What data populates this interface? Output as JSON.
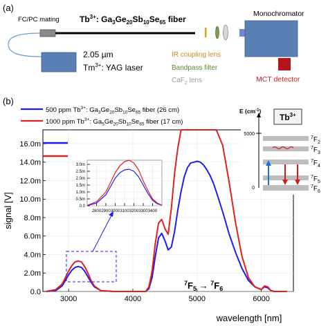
{
  "panel_a": {
    "label": "(a)",
    "mating": "FC/PC mating",
    "fiber_prefix": "Tb",
    "fiber_sup": "3+",
    "fiber_formula": ": Ga",
    "fiber_sub1": "3",
    "fiber_ge": "Ge",
    "fiber_sub2": "20",
    "fiber_sb": "Sb",
    "fiber_sub3": "10",
    "fiber_se": "Se",
    "fiber_sub4": "65",
    "fiber_suffix": " fiber",
    "monochromator": "Monochromator",
    "laser_wavelength": "2.05 µm",
    "laser_name_prefix": "Tm",
    "laser_name_sup": "3+",
    "laser_name_suffix": ": YAG laser",
    "ir_lens": "IR coupling lens",
    "bandpass": "Bandpass filter",
    "caf2_prefix": "CaF",
    "caf2_sub": "2",
    "caf2_suffix": " lens",
    "detector": "MCT detector",
    "colors": {
      "ir_lens": "#c8891f",
      "bandpass": "#5c8a2e",
      "caf2": "#999999",
      "detector": "#c81e1e",
      "fiber_line": "#000000"
    }
  },
  "panel_b": {
    "label": "(b)",
    "legend": [
      {
        "text_prefix": "500 ppm Tb",
        "text_sup": "3+",
        "text_mid": ": Ga",
        "s1": "3",
        "ge": "Ge",
        "s2": "20",
        "sb": "Sb",
        "s3": "10",
        "se": "Se",
        "s4": "65",
        "text_suffix": " fiber (26 cm)",
        "color": "#1a1aff"
      },
      {
        "text_prefix": "1000 ppm Tb",
        "text_sup": "3+",
        "text_mid": ": Ga",
        "s1": "5",
        "ge": "Ge",
        "s2": "20",
        "sb": "Sb",
        "s3": "10",
        "se": "Se",
        "s4": "65",
        "text_suffix": " fiber (17 cm)",
        "color": "#e01f1f"
      }
    ],
    "transition_label_1": "7",
    "transition_label_2": "F",
    "transition_label_3": "5",
    "transition_arrow": " → ",
    "transition_label_4": "7",
    "transition_label_5": "F",
    "transition_label_6": "6",
    "level_diagram": {
      "ion": "Tb",
      "ion_sup": "3+",
      "axis_title": "E (cm",
      "axis_title_sup": "-1",
      "axis_title_end": ")",
      "tick_5000": "5000",
      "tick_0": "0",
      "levels": [
        {
          "sup": "7",
          "name": "F",
          "sub": "2"
        },
        {
          "sup": "7",
          "name": "F",
          "sub": "3"
        },
        {
          "sup": "7",
          "name": "F",
          "sub": "4"
        },
        {
          "sup": "7",
          "name": "F",
          "sub": "5"
        },
        {
          "sup": "7",
          "name": "F",
          "sub": "6"
        }
      ]
    }
  },
  "chart_data": [
    {
      "type": "line",
      "xlabel": "wavelength [nm]",
      "ylabel": "signal [V]",
      "xlim": [
        2600,
        6500
      ],
      "ylim": [
        0,
        0.0175
      ],
      "x_ticks": [
        "3000",
        "4000",
        "5000",
        "6000"
      ],
      "y_ticks": [
        "0.0",
        "2.0m",
        "4.0m",
        "6.0m",
        "8.0m",
        "10.0m",
        "12.0m",
        "14.0m",
        "16.0m"
      ],
      "series": [
        {
          "name": "500 ppm",
          "color": "#1a1aff",
          "x": [
            2650,
            2800,
            2900,
            2950,
            3000,
            3050,
            3100,
            3150,
            3200,
            3250,
            3300,
            3350,
            3400,
            3500,
            3700,
            4000,
            4200,
            4250,
            4300,
            4350,
            4400,
            4450,
            4500,
            4550,
            4600,
            4650,
            4700,
            4750,
            4800,
            4850,
            4900,
            4950,
            5000,
            5050,
            5100,
            5150,
            5200,
            5250,
            5300,
            5400,
            5500,
            5600,
            5700,
            5800,
            5900,
            6000,
            6050,
            6100,
            6150,
            6200,
            6400
          ],
          "y": [
            0,
            0.0001,
            0.0006,
            0.0012,
            0.0018,
            0.0023,
            0.0026,
            0.0027,
            0.0026,
            0.0022,
            0.0016,
            0.001,
            0.0005,
            0.0001,
            0,
            0,
            0,
            0.0003,
            0.0015,
            0.0038,
            0.0058,
            0.0063,
            0.0055,
            0.0045,
            0.0048,
            0.0065,
            0.0088,
            0.0108,
            0.0124,
            0.0134,
            0.0139,
            0.014,
            0.0141,
            0.014,
            0.0137,
            0.0132,
            0.0126,
            0.0118,
            0.0108,
            0.0086,
            0.0062,
            0.0042,
            0.0025,
            0.0012,
            0.0005,
            0.0002,
            0.0005,
            0.0004,
            0.0001,
            0,
            0
          ]
        },
        {
          "name": "1000 ppm",
          "color": "#e01f1f",
          "x": [
            2650,
            2800,
            2900,
            2950,
            3000,
            3050,
            3100,
            3150,
            3200,
            3250,
            3300,
            3350,
            3400,
            3500,
            3700,
            4000,
            4200,
            4250,
            4300,
            4350,
            4400,
            4450,
            4500,
            4550,
            4600,
            4650,
            4700,
            4750,
            4800,
            4850,
            4900,
            4950,
            5000,
            5050,
            5100,
            5150,
            5200,
            5250,
            5300,
            5400,
            5500,
            5600,
            5700,
            5800,
            5900,
            6000,
            6050,
            6100,
            6150,
            6200,
            6400
          ],
          "y": [
            0,
            0.0002,
            0.0008,
            0.0015,
            0.0022,
            0.0028,
            0.0032,
            0.0033,
            0.0032,
            0.0027,
            0.002,
            0.0012,
            0.0006,
            0.0001,
            0,
            0,
            0,
            0.0005,
            0.0022,
            0.0052,
            0.0074,
            0.0078,
            0.0068,
            0.0062,
            0.009,
            0.0128,
            0.0155,
            0.0175,
            0.0175,
            0.0175,
            0.0175,
            0.0175,
            0.0175,
            0.0175,
            0.0175,
            0.0175,
            0.0175,
            0.0175,
            0.0175,
            0.0158,
            0.0118,
            0.0074,
            0.0038,
            0.0015,
            0.0005,
            0.0002,
            0.0006,
            0.0005,
            0.0001,
            0,
            0
          ]
        }
      ]
    },
    {
      "type": "line",
      "xlim": [
        2700,
        3500
      ],
      "ylim": [
        0,
        0.0033
      ],
      "x_ticks": [
        "2800",
        "2900",
        "3000",
        "3100",
        "3200",
        "3300",
        "3400"
      ],
      "y_ticks": [
        "0.0",
        "0.5m",
        "1.0m",
        "1.5m",
        "2.0m",
        "2.5m",
        "3.0m"
      ],
      "series": [
        {
          "name": "500 ppm inset",
          "color": "#1a1aff",
          "x": [
            2700,
            2800,
            2900,
            2950,
            3000,
            3050,
            3100,
            3150,
            3200,
            3250,
            3300,
            3350,
            3400,
            3450,
            3500
          ],
          "y": [
            2e-05,
            0.0002,
            0.0008,
            0.0014,
            0.002,
            0.0024,
            0.0026,
            0.00265,
            0.0025,
            0.0021,
            0.0015,
            0.0009,
            0.0004,
            0.00015,
            5e-05
          ]
        },
        {
          "name": "1000 ppm inset",
          "color": "#e01f1f",
          "x": [
            2700,
            2800,
            2900,
            2950,
            3000,
            3050,
            3100,
            3150,
            3200,
            3250,
            3300,
            3350,
            3400,
            3450,
            3500
          ],
          "y": [
            3e-05,
            0.0003,
            0.001,
            0.0017,
            0.0024,
            0.0029,
            0.0032,
            0.0033,
            0.0031,
            0.0026,
            0.0018,
            0.0011,
            0.0005,
            0.0002,
            5e-05
          ]
        }
      ]
    }
  ]
}
